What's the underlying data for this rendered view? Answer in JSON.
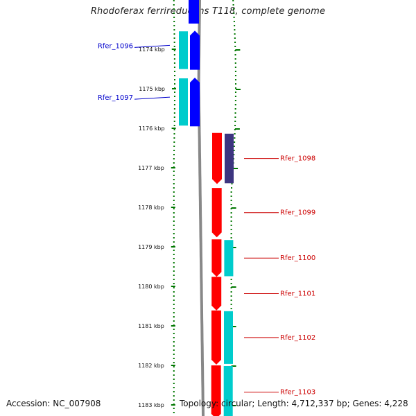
{
  "title": "Rhodoferax ferrireducens T118, complete genome",
  "footer": {
    "accession": "Accession: NC_007908",
    "summary": "Topology: circular; Length: 4,712,337 bp; Genes: 4,228"
  },
  "colors": {
    "forward_gene": "#ff0000",
    "reverse_gene": "#0000ff",
    "cog_cyan": "#00cccc",
    "cog_purple": "#3d3580",
    "label_forward": "#cc0000",
    "label_reverse": "#0000cc",
    "tick_green": "#007700",
    "backbone": "#888888"
  },
  "ticks": [
    {
      "label": "1174 kbp"
    },
    {
      "label": "1175 kbp"
    },
    {
      "label": "1176 kbp"
    },
    {
      "label": "1177 kbp"
    },
    {
      "label": "1178 kbp"
    },
    {
      "label": "1179 kbp"
    },
    {
      "label": "1180 kbp"
    },
    {
      "label": "1181 kbp"
    },
    {
      "label": "1182 kbp"
    },
    {
      "label": "1183 kbp"
    }
  ],
  "genes": [
    {
      "name": "Rfer_1096",
      "strand": "reverse",
      "start_kbp": 1173.53,
      "end_kbp": 1174.52,
      "cog": "cyan"
    },
    {
      "name": "Rfer_1097",
      "strand": "reverse",
      "start_kbp": 1174.72,
      "end_kbp": 1175.95,
      "cog": "cyan"
    },
    {
      "name": "Rfer_1098",
      "strand": "forward",
      "start_kbp": 1176.12,
      "end_kbp": 1177.41,
      "cog": "purple"
    },
    {
      "name": "Rfer_1099",
      "strand": "forward",
      "start_kbp": 1177.51,
      "end_kbp": 1178.76,
      "cog": "none"
    },
    {
      "name": "Rfer_1100",
      "strand": "forward",
      "start_kbp": 1178.81,
      "end_kbp": 1179.76,
      "cog": "cyan"
    },
    {
      "name": "Rfer_1101",
      "strand": "forward",
      "start_kbp": 1179.76,
      "end_kbp": 1180.61,
      "cog": "none"
    },
    {
      "name": "Rfer_1102",
      "strand": "forward",
      "start_kbp": 1180.61,
      "end_kbp": 1181.98,
      "cog": "cyan"
    },
    {
      "name": "Rfer_1103",
      "strand": "forward",
      "start_kbp": 1182.0,
      "end_kbp": 1183.35,
      "cog": "cyan"
    }
  ]
}
